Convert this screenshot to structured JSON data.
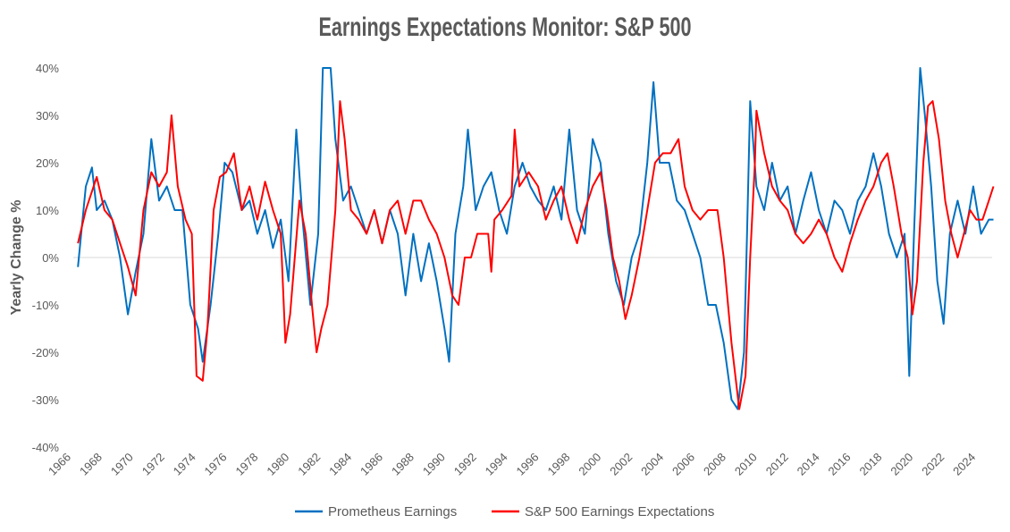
{
  "chart_data": {
    "type": "line",
    "title": "Earnings Expectations Monitor: S&P 500",
    "xlabel": "",
    "ylabel": "Yearly Change %",
    "xlim": [
      1966,
      2025.2
    ],
    "ylim": [
      -40,
      40
    ],
    "x_ticks": [
      "1966",
      "1968",
      "1970",
      "1972",
      "1974",
      "1976",
      "1978",
      "1980",
      "1982",
      "1984",
      "1986",
      "1988",
      "1990",
      "1992",
      "1994",
      "1996",
      "1998",
      "2000",
      "2002",
      "2004",
      "2006",
      "2008",
      "2010",
      "2012",
      "2014",
      "2016",
      "2018",
      "2020",
      "2022",
      "2024"
    ],
    "y_ticks": [
      "-40%",
      "-30%",
      "-20%",
      "-10%",
      "0%",
      "10%",
      "20%",
      "30%",
      "40%"
    ],
    "grid": false,
    "legend_position": "bottom",
    "series": [
      {
        "name": "Prometheus Earnings",
        "color": "#0070C0",
        "points": [
          [
            1966.3,
            -2
          ],
          [
            1966.8,
            15
          ],
          [
            1967.2,
            19
          ],
          [
            1967.5,
            10
          ],
          [
            1968,
            12
          ],
          [
            1968.5,
            8
          ],
          [
            1969,
            0
          ],
          [
            1969.5,
            -12
          ],
          [
            1970,
            -3
          ],
          [
            1970.5,
            5
          ],
          [
            1971,
            25
          ],
          [
            1971.5,
            12
          ],
          [
            1972,
            15
          ],
          [
            1972.5,
            10
          ],
          [
            1973,
            10
          ],
          [
            1973.5,
            -10
          ],
          [
            1974,
            -15
          ],
          [
            1974.3,
            -22
          ],
          [
            1974.8,
            -10
          ],
          [
            1975.3,
            5
          ],
          [
            1975.7,
            20
          ],
          [
            1976.2,
            18
          ],
          [
            1976.8,
            10
          ],
          [
            1977.3,
            12
          ],
          [
            1977.8,
            5
          ],
          [
            1978.3,
            10
          ],
          [
            1978.8,
            2
          ],
          [
            1979.3,
            8
          ],
          [
            1979.8,
            -5
          ],
          [
            1980.3,
            27
          ],
          [
            1980.7,
            8
          ],
          [
            1981.2,
            -10
          ],
          [
            1981.7,
            5
          ],
          [
            1982,
            40
          ],
          [
            1982.5,
            40
          ],
          [
            1982.8,
            25
          ],
          [
            1983.3,
            12
          ],
          [
            1983.8,
            15
          ],
          [
            1984.3,
            10
          ],
          [
            1984.8,
            5
          ],
          [
            1985.3,
            10
          ],
          [
            1985.8,
            3
          ],
          [
            1986.3,
            10
          ],
          [
            1986.8,
            5
          ],
          [
            1987.3,
            -8
          ],
          [
            1987.8,
            5
          ],
          [
            1988.3,
            -5
          ],
          [
            1988.8,
            3
          ],
          [
            1989.3,
            -5
          ],
          [
            1989.8,
            -15
          ],
          [
            1990.1,
            -22
          ],
          [
            1990.5,
            5
          ],
          [
            1991,
            15
          ],
          [
            1991.3,
            27
          ],
          [
            1991.8,
            10
          ],
          [
            1992.3,
            15
          ],
          [
            1992.8,
            18
          ],
          [
            1993.3,
            10
          ],
          [
            1993.8,
            5
          ],
          [
            1994.3,
            15
          ],
          [
            1994.8,
            20
          ],
          [
            1995.3,
            15
          ],
          [
            1995.8,
            12
          ],
          [
            1996.3,
            10
          ],
          [
            1996.8,
            15
          ],
          [
            1997.3,
            8
          ],
          [
            1997.8,
            27
          ],
          [
            1998.3,
            10
          ],
          [
            1998.8,
            5
          ],
          [
            1999.3,
            25
          ],
          [
            1999.8,
            20
          ],
          [
            2000.3,
            5
          ],
          [
            2000.8,
            -5
          ],
          [
            2001.3,
            -10
          ],
          [
            2001.8,
            0
          ],
          [
            2002.3,
            5
          ],
          [
            2002.8,
            20
          ],
          [
            2003.2,
            37
          ],
          [
            2003.6,
            20
          ],
          [
            2004.2,
            20
          ],
          [
            2004.7,
            12
          ],
          [
            2005.2,
            10
          ],
          [
            2005.7,
            5
          ],
          [
            2006.2,
            0
          ],
          [
            2006.7,
            -10
          ],
          [
            2007.2,
            -10
          ],
          [
            2007.7,
            -18
          ],
          [
            2008.2,
            -30
          ],
          [
            2008.6,
            -32
          ],
          [
            2009.0,
            -20
          ],
          [
            2009.2,
            5
          ],
          [
            2009.4,
            33
          ],
          [
            2009.8,
            15
          ],
          [
            2010.3,
            10
          ],
          [
            2010.8,
            20
          ],
          [
            2011.3,
            12
          ],
          [
            2011.8,
            15
          ],
          [
            2012.3,
            5
          ],
          [
            2012.8,
            12
          ],
          [
            2013.3,
            18
          ],
          [
            2013.8,
            10
          ],
          [
            2014.3,
            5
          ],
          [
            2014.8,
            12
          ],
          [
            2015.3,
            10
          ],
          [
            2015.8,
            5
          ],
          [
            2016.3,
            12
          ],
          [
            2016.8,
            15
          ],
          [
            2017.3,
            22
          ],
          [
            2017.8,
            15
          ],
          [
            2018.3,
            5
          ],
          [
            2018.8,
            0
          ],
          [
            2019.3,
            5
          ],
          [
            2019.6,
            -25
          ],
          [
            2019.9,
            5
          ],
          [
            2020.3,
            40
          ],
          [
            2020.6,
            30
          ],
          [
            2021,
            15
          ],
          [
            2021.4,
            -5
          ],
          [
            2021.8,
            -14
          ],
          [
            2022.2,
            5
          ],
          [
            2022.7,
            12
          ],
          [
            2023.2,
            5
          ],
          [
            2023.7,
            15
          ],
          [
            2024.2,
            5
          ],
          [
            2024.7,
            8
          ],
          [
            2025,
            8
          ]
        ]
      },
      {
        "name": "S&P 500 Earnings Expectations",
        "color": "#FF0000",
        "points": [
          [
            1966.3,
            3
          ],
          [
            1966.8,
            10
          ],
          [
            1967.5,
            17
          ],
          [
            1968,
            10
          ],
          [
            1968.5,
            8
          ],
          [
            1969,
            3
          ],
          [
            1969.5,
            -2
          ],
          [
            1970,
            -8
          ],
          [
            1970.5,
            10
          ],
          [
            1971,
            18
          ],
          [
            1971.5,
            15
          ],
          [
            1972,
            18
          ],
          [
            1972.3,
            30
          ],
          [
            1972.7,
            15
          ],
          [
            1973.2,
            8
          ],
          [
            1973.6,
            5
          ],
          [
            1973.9,
            -25
          ],
          [
            1974.3,
            -26
          ],
          [
            1974.6,
            -15
          ],
          [
            1975,
            10
          ],
          [
            1975.4,
            17
          ],
          [
            1975.8,
            18
          ],
          [
            1976.3,
            22
          ],
          [
            1976.8,
            10
          ],
          [
            1977.3,
            15
          ],
          [
            1977.8,
            8
          ],
          [
            1978.3,
            16
          ],
          [
            1978.8,
            10
          ],
          [
            1979.3,
            5
          ],
          [
            1979.6,
            -18
          ],
          [
            1979.9,
            -12
          ],
          [
            1980.2,
            0
          ],
          [
            1980.5,
            12
          ],
          [
            1980.9,
            5
          ],
          [
            1981.3,
            -10
          ],
          [
            1981.6,
            -20
          ],
          [
            1981.9,
            -15
          ],
          [
            1982.3,
            -10
          ],
          [
            1982.8,
            10
          ],
          [
            1983.1,
            33
          ],
          [
            1983.4,
            25
          ],
          [
            1983.8,
            10
          ],
          [
            1984.3,
            8
          ],
          [
            1984.8,
            5
          ],
          [
            1985.3,
            10
          ],
          [
            1985.8,
            3
          ],
          [
            1986.3,
            10
          ],
          [
            1986.8,
            12
          ],
          [
            1987.3,
            5
          ],
          [
            1987.8,
            12
          ],
          [
            1988.3,
            12
          ],
          [
            1988.8,
            8
          ],
          [
            1989.3,
            5
          ],
          [
            1989.8,
            0
          ],
          [
            1990.3,
            -8
          ],
          [
            1990.7,
            -10
          ],
          [
            1991.1,
            0
          ],
          [
            1991.5,
            0
          ],
          [
            1991.9,
            5
          ],
          [
            1992.3,
            5
          ],
          [
            1992.6,
            5
          ],
          [
            1992.8,
            -3
          ],
          [
            1993,
            8
          ],
          [
            1993.5,
            10
          ],
          [
            1994.1,
            13
          ],
          [
            1994.3,
            27
          ],
          [
            1994.6,
            15
          ],
          [
            1995.2,
            18
          ],
          [
            1995.8,
            15
          ],
          [
            1996.3,
            8
          ],
          [
            1996.8,
            12
          ],
          [
            1997.3,
            15
          ],
          [
            1997.8,
            8
          ],
          [
            1998.3,
            3
          ],
          [
            1998.8,
            10
          ],
          [
            1999.3,
            15
          ],
          [
            1999.8,
            18
          ],
          [
            2000.2,
            10
          ],
          [
            2000.6,
            0
          ],
          [
            2001,
            -5
          ],
          [
            2001.4,
            -13
          ],
          [
            2001.8,
            -8
          ],
          [
            2002.3,
            0
          ],
          [
            2002.8,
            10
          ],
          [
            2003.3,
            20
          ],
          [
            2003.8,
            22
          ],
          [
            2004.3,
            22
          ],
          [
            2004.8,
            25
          ],
          [
            2005.2,
            15
          ],
          [
            2005.7,
            10
          ],
          [
            2006.2,
            8
          ],
          [
            2006.7,
            10
          ],
          [
            2007.3,
            10
          ],
          [
            2007.7,
            0
          ],
          [
            2008.2,
            -18
          ],
          [
            2008.7,
            -32
          ],
          [
            2009.1,
            -25
          ],
          [
            2009.4,
            0
          ],
          [
            2009.7,
            20
          ],
          [
            2009.8,
            31
          ],
          [
            2010.3,
            22
          ],
          [
            2010.8,
            15
          ],
          [
            2011.3,
            12
          ],
          [
            2011.8,
            10
          ],
          [
            2012.3,
            5
          ],
          [
            2012.8,
            3
          ],
          [
            2013.3,
            5
          ],
          [
            2013.8,
            8
          ],
          [
            2014.3,
            5
          ],
          [
            2014.8,
            0
          ],
          [
            2015.3,
            -3
          ],
          [
            2015.8,
            3
          ],
          [
            2016.3,
            8
          ],
          [
            2016.8,
            12
          ],
          [
            2017.3,
            15
          ],
          [
            2017.8,
            20
          ],
          [
            2018.2,
            22
          ],
          [
            2018.6,
            15
          ],
          [
            2019.1,
            5
          ],
          [
            2019.5,
            0
          ],
          [
            2019.8,
            -12
          ],
          [
            2020.1,
            -5
          ],
          [
            2020.5,
            20
          ],
          [
            2020.8,
            32
          ],
          [
            2021.1,
            33
          ],
          [
            2021.5,
            25
          ],
          [
            2021.9,
            12
          ],
          [
            2022.3,
            5
          ],
          [
            2022.7,
            0
          ],
          [
            2023.1,
            5
          ],
          [
            2023.5,
            10
          ],
          [
            2023.9,
            8
          ],
          [
            2024.3,
            8
          ],
          [
            2024.7,
            12
          ],
          [
            2025,
            15
          ]
        ]
      }
    ]
  }
}
